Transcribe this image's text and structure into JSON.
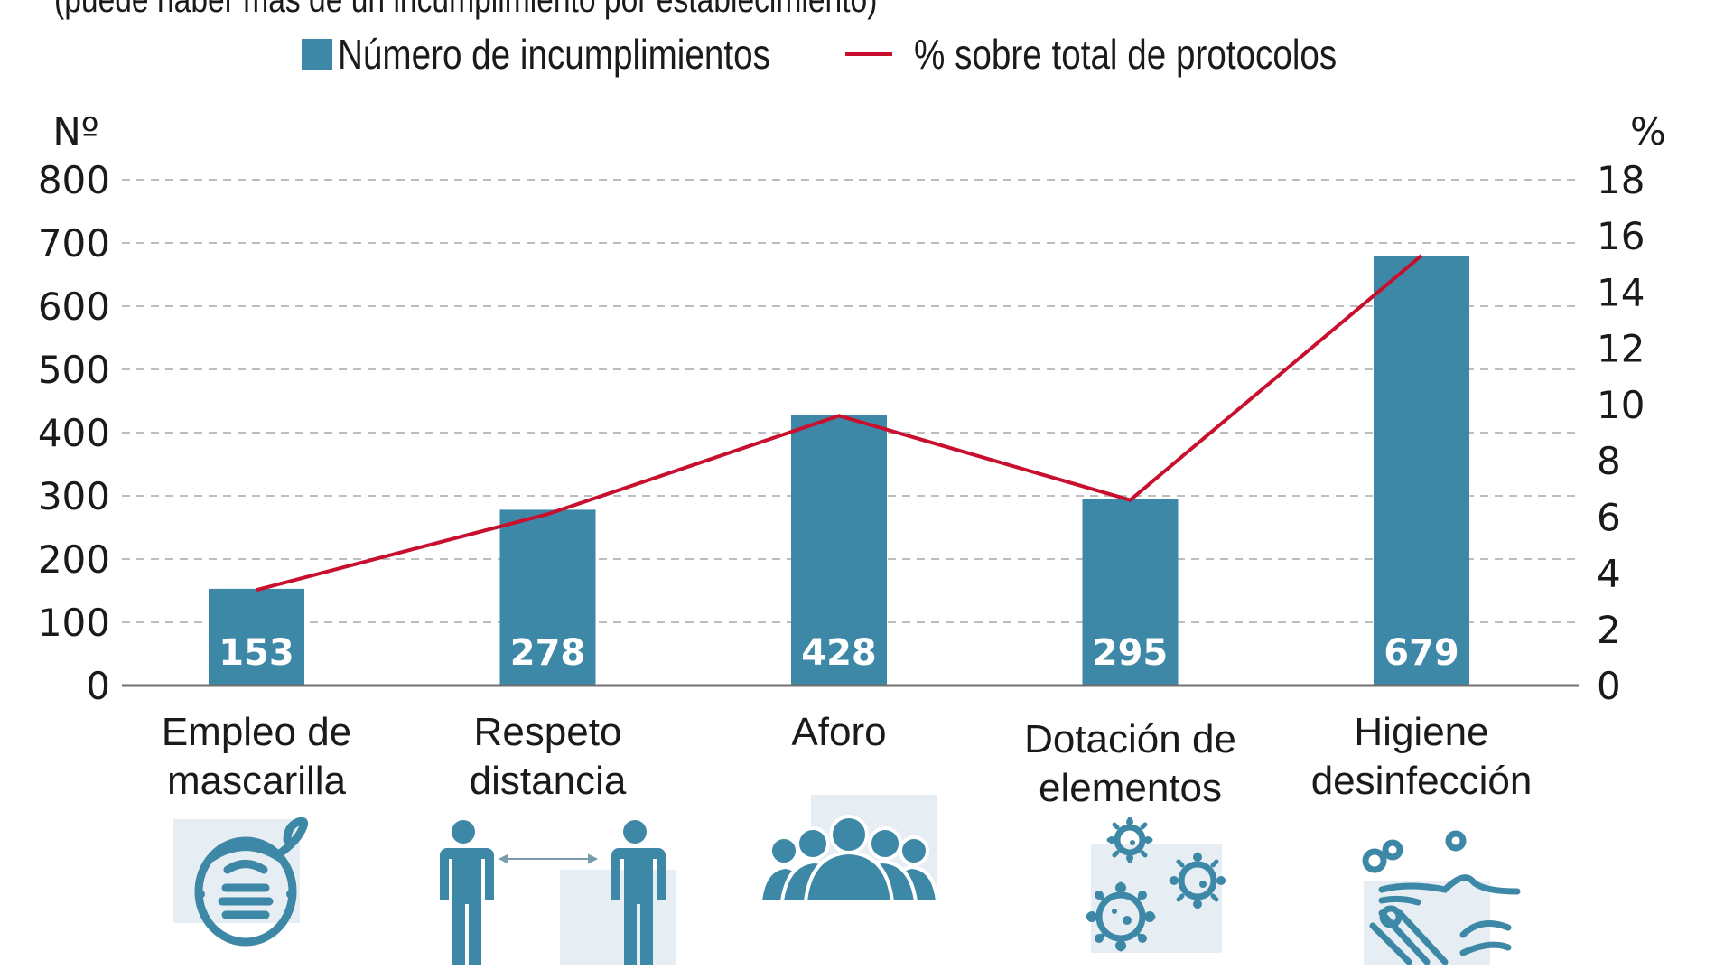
{
  "subtitle": "(puede haber más de un incumplimiento por establecimiento)",
  "legend": {
    "bars_label": "Número de incumplimientos",
    "line_label": "% sobre total de protocolos"
  },
  "colors": {
    "bar": "#3d88a6",
    "line": "#c8102e",
    "icon": "#3d88a6",
    "icon_bg": "#e6edf3",
    "grid": "#bdbdbd",
    "axis": "#707070"
  },
  "chart_data": {
    "type": "bar",
    "title": "",
    "categories": [
      [
        "Empleo de",
        "mascarilla"
      ],
      [
        "Respeto",
        "distancia"
      ],
      [
        "Aforo"
      ],
      [
        "Dotación de",
        "elementos"
      ],
      [
        "Higiene",
        "desinfección"
      ]
    ],
    "category_icons": [
      "mask-icon",
      "social-distance-icon",
      "crowd-icon",
      "virus-icon",
      "handwash-icon"
    ],
    "series": [
      {
        "name": "Número de incumplimientos",
        "type": "bar",
        "axis": "left",
        "values": [
          153,
          278,
          428,
          295,
          679
        ]
      },
      {
        "name": "% sobre total de protocolos",
        "type": "line",
        "axis": "right",
        "values": [
          3.4,
          6.1,
          9.6,
          6.6,
          15.3
        ]
      }
    ],
    "data_labels": [
      "153",
      "278",
      "428",
      "295",
      "679"
    ],
    "ylabel": "Nº",
    "ylim": [
      0,
      800
    ],
    "yticks": [
      0,
      100,
      200,
      300,
      400,
      500,
      600,
      700,
      800
    ],
    "y2label": "%",
    "y2lim": [
      0,
      18
    ],
    "y2ticks": [
      0,
      2,
      4,
      6,
      8,
      10,
      12,
      14,
      16,
      18
    ],
    "grid": true,
    "legend_position": "top-center"
  }
}
